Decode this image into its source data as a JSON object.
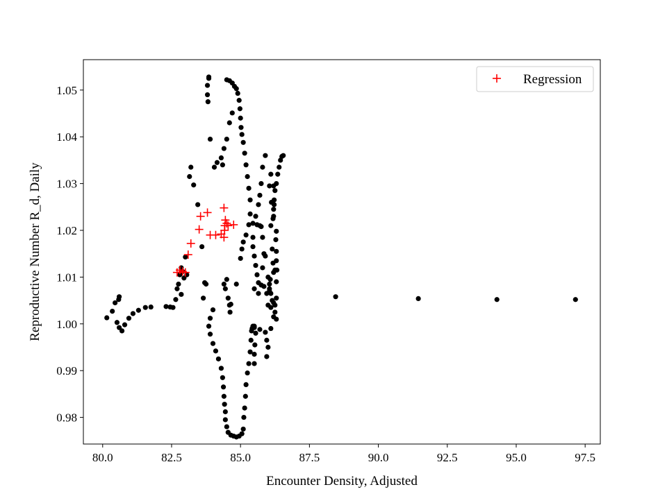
{
  "chart_data": {
    "type": "scatter",
    "title": "",
    "xlabel": "Encounter Density, Adjusted",
    "ylabel": "Reproductive Number R_d, Daily",
    "xlim": [
      79.3,
      98.05
    ],
    "ylim": [
      0.9743,
      1.0565
    ],
    "xticks": [
      80.0,
      82.5,
      85.0,
      87.5,
      90.0,
      92.5,
      95.0,
      97.5
    ],
    "xtick_labels": [
      "80.0",
      "82.5",
      "85.0",
      "87.5",
      "90.0",
      "92.5",
      "95.0",
      "97.5"
    ],
    "yticks": [
      0.98,
      0.99,
      1.0,
      1.01,
      1.02,
      1.03,
      1.04,
      1.05
    ],
    "ytick_labels": [
      "0.98",
      "0.99",
      "1.00",
      "1.01",
      "1.02",
      "1.03",
      "1.04",
      "1.05"
    ],
    "grid": false,
    "legend": {
      "location": "upper right",
      "entries": [
        "Regression"
      ]
    },
    "colors": {
      "observed": "#000000",
      "regression": "#ff0000"
    },
    "series": [
      {
        "marker": "dot",
        "color": "#000000",
        "points": [
          [
            80.15,
            1.0013
          ],
          [
            80.35,
            1.0027
          ],
          [
            80.45,
            1.0045
          ],
          [
            80.58,
            1.0052
          ],
          [
            80.6,
            1.0058
          ],
          [
            80.52,
            1.0003
          ],
          [
            80.6,
            0.9992
          ],
          [
            80.7,
            0.9985
          ],
          [
            80.8,
            0.9998
          ],
          [
            80.95,
            1.0012
          ],
          [
            81.1,
            1.0022
          ],
          [
            81.3,
            1.0029
          ],
          [
            81.55,
            1.0035
          ],
          [
            81.75,
            1.0036
          ],
          [
            82.3,
            1.0037
          ],
          [
            82.45,
            1.0036
          ],
          [
            82.55,
            1.0035
          ],
          [
            82.65,
            1.0052
          ],
          [
            82.85,
            1.0063
          ],
          [
            83.15,
            1.0315
          ],
          [
            83.2,
            1.0335
          ],
          [
            83.3,
            1.0297
          ],
          [
            83.45,
            1.0255
          ],
          [
            83.6,
            1.0165
          ],
          [
            83.65,
            1.0055
          ],
          [
            83.7,
            1.0088
          ],
          [
            83.75,
            1.0085
          ],
          [
            83.9,
            1.0395
          ],
          [
            84.05,
            1.0335
          ],
          [
            84.15,
            1.0345
          ],
          [
            84.3,
            1.0355
          ],
          [
            84.4,
            1.0375
          ],
          [
            84.5,
            1.0395
          ],
          [
            84.6,
            1.043
          ],
          [
            84.7,
            1.0451
          ],
          [
            83.85,
            1.0528
          ],
          [
            83.85,
            1.0525
          ],
          [
            83.8,
            1.051
          ],
          [
            83.8,
            1.049
          ],
          [
            83.82,
            1.0475
          ],
          [
            84.35,
            1.034
          ],
          [
            84.4,
            1.0085
          ],
          [
            84.45,
            1.0075
          ],
          [
            84.5,
            1.0095
          ],
          [
            84.55,
            1.0055
          ],
          [
            84.6,
            1.004
          ],
          [
            84.62,
            1.0025
          ],
          [
            84.65,
            1.0042
          ],
          [
            84.0,
            1.003
          ],
          [
            83.9,
            1.0012
          ],
          [
            83.85,
            0.9995
          ],
          [
            83.9,
            0.9978
          ],
          [
            84.0,
            0.9958
          ],
          [
            84.1,
            0.9942
          ],
          [
            84.2,
            0.9925
          ],
          [
            84.3,
            0.9905
          ],
          [
            84.35,
            0.9885
          ],
          [
            84.38,
            0.9865
          ],
          [
            84.4,
            0.9845
          ],
          [
            84.42,
            0.9828
          ],
          [
            84.45,
            0.9812
          ],
          [
            84.45,
            0.9795
          ],
          [
            84.5,
            0.978
          ],
          [
            84.55,
            0.9768
          ],
          [
            84.65,
            0.9762
          ],
          [
            84.75,
            0.976
          ],
          [
            84.85,
            0.9758
          ],
          [
            84.95,
            0.976
          ],
          [
            85.05,
            0.9765
          ],
          [
            85.1,
            0.9775
          ],
          [
            85.12,
            0.98
          ],
          [
            85.15,
            0.982
          ],
          [
            85.18,
            0.9845
          ],
          [
            85.2,
            0.987
          ],
          [
            85.25,
            0.9895
          ],
          [
            85.3,
            0.9915
          ],
          [
            85.35,
            0.994
          ],
          [
            85.38,
            0.9965
          ],
          [
            85.4,
            0.9985
          ],
          [
            85.42,
            0.999
          ],
          [
            85.45,
            0.9995
          ],
          [
            85.5,
            0.9992
          ],
          [
            85.7,
            0.9988
          ],
          [
            85.9,
            0.9982
          ],
          [
            85.95,
            0.9965
          ],
          [
            85.5,
            0.9915
          ],
          [
            85.5,
            0.9935
          ],
          [
            85.52,
            0.9955
          ],
          [
            85.55,
            0.998
          ],
          [
            85.5,
            0.9995
          ],
          [
            84.85,
            1.0085
          ],
          [
            85.0,
            1.014
          ],
          [
            85.05,
            1.016
          ],
          [
            85.1,
            1.0175
          ],
          [
            85.2,
            1.019
          ],
          [
            85.3,
            1.0212
          ],
          [
            85.35,
            1.0235
          ],
          [
            85.35,
            1.0265
          ],
          [
            85.3,
            1.029
          ],
          [
            85.25,
            1.0315
          ],
          [
            85.2,
            1.034
          ],
          [
            85.15,
            1.0365
          ],
          [
            85.1,
            1.0388
          ],
          [
            85.05,
            1.0405
          ],
          [
            85.02,
            1.042
          ],
          [
            85.0,
            1.044
          ],
          [
            84.98,
            1.046
          ],
          [
            84.95,
            1.0478
          ],
          [
            84.9,
            1.0493
          ],
          [
            84.85,
            1.0503
          ],
          [
            84.78,
            1.0508
          ],
          [
            84.7,
            1.0515
          ],
          [
            84.6,
            1.052
          ],
          [
            84.5,
            1.0522
          ],
          [
            85.45,
            1.0185
          ],
          [
            85.45,
            1.0165
          ],
          [
            85.5,
            1.0145
          ],
          [
            85.55,
            1.0125
          ],
          [
            85.6,
            1.0105
          ],
          [
            85.65,
            1.0088
          ],
          [
            85.75,
            1.0083
          ],
          [
            85.85,
            1.008
          ],
          [
            85.8,
            1.012
          ],
          [
            85.65,
            1.0065
          ],
          [
            85.5,
            1.0075
          ],
          [
            85.45,
            1.0215
          ],
          [
            85.55,
            1.023
          ],
          [
            85.65,
            1.0255
          ],
          [
            85.7,
            1.0275
          ],
          [
            85.75,
            1.03
          ],
          [
            85.8,
            1.0335
          ],
          [
            85.9,
            1.036
          ],
          [
            86.1,
            1.032
          ],
          [
            86.12,
            1.026
          ],
          [
            86.15,
            1.016
          ],
          [
            86.18,
            1.013
          ],
          [
            86.25,
            1.0115
          ],
          [
            86.2,
            1.011
          ],
          [
            86.08,
            1.0095
          ],
          [
            86.05,
            1.0075
          ],
          [
            85.95,
            1.0065
          ],
          [
            86.0,
            1.004
          ],
          [
            86.1,
            1.0035
          ],
          [
            86.2,
            1.0015
          ],
          [
            86.3,
            1.001
          ],
          [
            86.25,
            1.0025
          ],
          [
            86.1,
            0.999
          ],
          [
            86.0,
            0.995
          ],
          [
            85.95,
            0.993
          ],
          [
            85.6,
            1.0212
          ],
          [
            85.7,
            1.021
          ],
          [
            85.75,
            1.0208
          ],
          [
            85.8,
            1.0185
          ],
          [
            85.85,
            1.015
          ],
          [
            85.9,
            1.0145
          ],
          [
            86.0,
            1.01
          ],
          [
            86.05,
            1.0085
          ],
          [
            86.05,
            1.007
          ],
          [
            86.1,
            1.0065
          ],
          [
            86.15,
            1.005
          ],
          [
            86.2,
            1.0045
          ],
          [
            86.25,
            1.004
          ],
          [
            86.3,
            1.0055
          ],
          [
            86.3,
            1.009
          ],
          [
            86.32,
            1.0115
          ],
          [
            86.3,
            1.0135
          ],
          [
            86.3,
            1.0155
          ],
          [
            86.28,
            1.018
          ],
          [
            86.3,
            1.0198
          ],
          [
            86.2,
            1.023
          ],
          [
            86.2,
            1.0245
          ],
          [
            86.22,
            1.0265
          ],
          [
            86.25,
            1.0285
          ],
          [
            86.3,
            1.03
          ],
          [
            86.35,
            1.032
          ],
          [
            86.4,
            1.0335
          ],
          [
            86.45,
            1.035
          ],
          [
            86.5,
            1.0358
          ],
          [
            86.55,
            1.036
          ],
          [
            86.2,
            1.0295
          ],
          [
            86.22,
            1.0255
          ],
          [
            86.18,
            1.0225
          ],
          [
            86.1,
            1.021
          ],
          [
            86.05,
            1.0295
          ],
          [
            82.85,
            1.012
          ],
          [
            82.8,
            1.0105
          ],
          [
            82.75,
            1.0085
          ],
          [
            82.7,
            1.0075
          ],
          [
            83.0,
            1.0143
          ],
          [
            82.9,
            1.0112
          ],
          [
            83.05,
            1.0105
          ],
          [
            82.95,
            1.0098
          ],
          [
            88.45,
            1.0058
          ],
          [
            91.45,
            1.0054
          ],
          [
            94.3,
            1.0052
          ],
          [
            97.15,
            1.0052
          ]
        ]
      },
      {
        "name": "Regression",
        "marker": "plus",
        "color": "#ff0000",
        "points": [
          [
            82.7,
            1.011
          ],
          [
            82.8,
            1.0115
          ],
          [
            82.9,
            1.0112
          ],
          [
            83.0,
            1.011
          ],
          [
            83.1,
            1.0148
          ],
          [
            83.2,
            1.0172
          ],
          [
            83.5,
            1.0202
          ],
          [
            83.55,
            1.023
          ],
          [
            83.8,
            1.0238
          ],
          [
            83.9,
            1.019
          ],
          [
            84.1,
            1.019
          ],
          [
            84.3,
            1.0192
          ],
          [
            84.4,
            1.0185
          ],
          [
            84.42,
            1.02
          ],
          [
            84.43,
            1.021
          ],
          [
            84.45,
            1.0222
          ],
          [
            84.4,
            1.0248
          ],
          [
            84.5,
            1.0215
          ],
          [
            84.55,
            1.021
          ],
          [
            84.75,
            1.0212
          ]
        ]
      }
    ]
  }
}
